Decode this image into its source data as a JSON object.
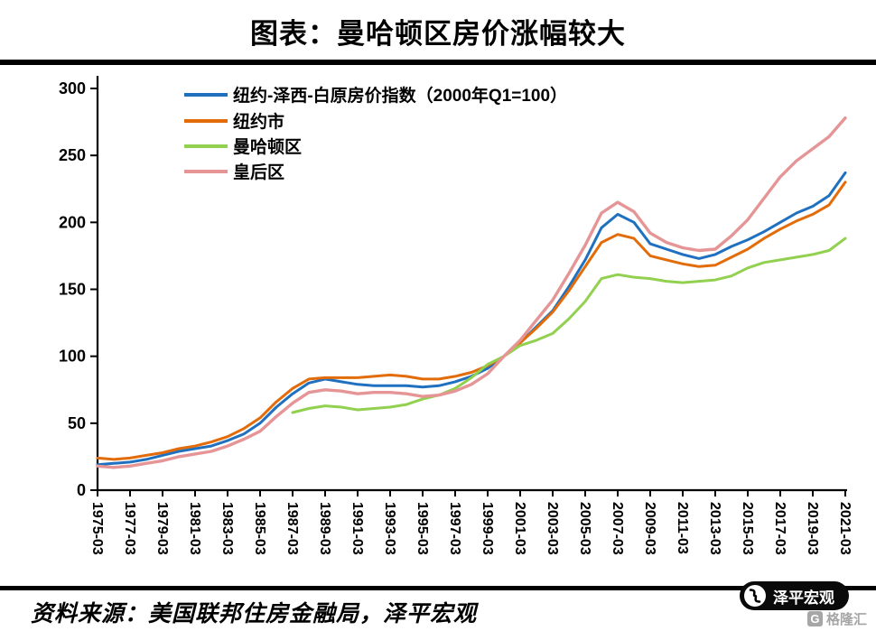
{
  "page": {
    "title": "图表：曼哈顿区房价涨幅较大",
    "source_note": "资料来源：美国联邦住房金融局，泽平宏观",
    "brand_badge": "泽平宏观",
    "watermark": "格隆汇",
    "watermark_icon_letter": "G",
    "colors": {
      "blue": "#2070C0",
      "orange": "#E36C0A",
      "green": "#92D050",
      "pink": "#E59595",
      "axis": "#000000"
    }
  },
  "chart_data": {
    "type": "line",
    "title": "图表：曼哈顿区房价涨幅较大",
    "grid": false,
    "legend_position": "top-left",
    "ylim": [
      0,
      300
    ],
    "y_ticks": [
      0,
      50,
      100,
      150,
      200,
      250,
      300
    ],
    "x_tick_labels": [
      "1975-03",
      "1977-03",
      "1979-03",
      "1981-03",
      "1983-03",
      "1985-03",
      "1987-03",
      "1989-03",
      "1991-03",
      "1993-03",
      "1995-03",
      "1997-03",
      "1999-03",
      "2001-03",
      "2003-03",
      "2005-03",
      "2007-03",
      "2009-03",
      "2011-03",
      "2013-03",
      "2015-03",
      "2017-03",
      "2019-03",
      "2021-03"
    ],
    "x_years": [
      1975,
      1976,
      1977,
      1978,
      1979,
      1980,
      1981,
      1982,
      1983,
      1984,
      1985,
      1986,
      1987,
      1988,
      1989,
      1990,
      1991,
      1992,
      1993,
      1994,
      1995,
      1996,
      1997,
      1998,
      1999,
      2000,
      2001,
      2002,
      2003,
      2004,
      2005,
      2006,
      2007,
      2008,
      2009,
      2010,
      2011,
      2012,
      2013,
      2014,
      2015,
      2016,
      2017,
      2018,
      2019,
      2020,
      2021
    ],
    "series": [
      {
        "name": "纽约-泽西-白原房价指数（2000年Q1=100）",
        "color": "#2070C0",
        "values": [
          19,
          20,
          21,
          23,
          26,
          29,
          31,
          33,
          37,
          42,
          50,
          62,
          72,
          80,
          83,
          81,
          79,
          78,
          78,
          78,
          77,
          78,
          81,
          85,
          91,
          100,
          110,
          122,
          134,
          152,
          172,
          196,
          206,
          200,
          184,
          180,
          176,
          173,
          176,
          182,
          187,
          193,
          200,
          207,
          212,
          220,
          237
        ]
      },
      {
        "name": "纽约市",
        "color": "#E36C0A",
        "values": [
          24,
          23,
          24,
          26,
          28,
          31,
          33,
          36,
          40,
          46,
          54,
          66,
          76,
          83,
          84,
          84,
          84,
          85,
          86,
          85,
          83,
          83,
          85,
          88,
          93,
          100,
          110,
          121,
          133,
          149,
          167,
          185,
          191,
          188,
          175,
          172,
          169,
          167,
          168,
          174,
          180,
          188,
          195,
          201,
          206,
          213,
          230
        ]
      },
      {
        "name": "曼哈顿区",
        "color": "#92D050",
        "values": [
          null,
          null,
          null,
          null,
          null,
          null,
          null,
          null,
          null,
          null,
          null,
          null,
          58,
          61,
          63,
          62,
          60,
          61,
          62,
          64,
          68,
          71,
          76,
          84,
          94,
          100,
          108,
          112,
          117,
          128,
          141,
          158,
          161,
          159,
          158,
          156,
          155,
          156,
          157,
          160,
          166,
          170,
          172,
          174,
          176,
          179,
          188
        ]
      },
      {
        "name": "皇后区",
        "color": "#E59595",
        "values": [
          18,
          17,
          18,
          20,
          22,
          25,
          27,
          29,
          33,
          38,
          44,
          55,
          65,
          73,
          75,
          74,
          72,
          73,
          73,
          72,
          70,
          71,
          74,
          79,
          87,
          100,
          112,
          127,
          142,
          162,
          183,
          207,
          215,
          208,
          192,
          185,
          181,
          179,
          180,
          190,
          202,
          218,
          234,
          246,
          255,
          264,
          278
        ]
      }
    ]
  }
}
